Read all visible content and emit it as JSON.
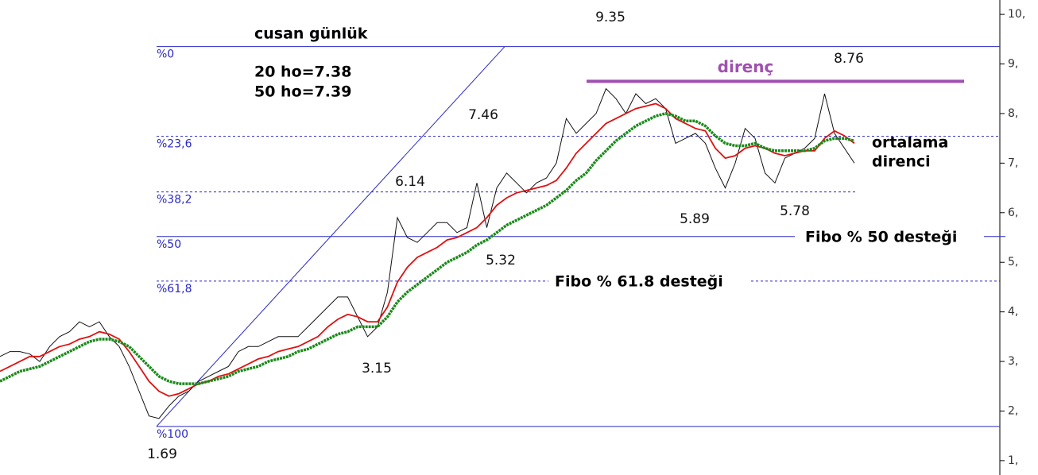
{
  "chart_data": {
    "type": "line",
    "title": "cusan günlük",
    "ma_labels": [
      "20 ho=7.38",
      "50 ho=7.39"
    ],
    "categories": [
      null,
      null,
      null,
      null,
      null,
      null,
      null,
      null,
      null,
      null,
      null,
      null,
      null,
      null,
      null,
      null,
      null,
      null,
      null,
      null,
      null,
      null,
      null,
      null,
      null,
      null,
      null,
      null,
      null,
      null,
      null,
      null,
      null,
      null,
      null,
      null,
      null,
      null,
      null,
      null,
      null,
      null,
      null,
      null,
      null,
      null,
      null,
      null,
      null,
      null,
      null,
      null,
      null,
      null,
      null,
      null,
      null,
      null,
      null,
      null,
      null,
      null,
      null,
      null,
      null,
      null,
      null,
      null,
      null,
      null,
      null,
      null,
      null,
      null,
      null,
      null,
      null,
      null,
      null,
      null,
      null,
      null,
      null,
      null,
      null,
      null,
      null
    ],
    "series": [
      {
        "color": "#111111",
        "values": [
          3.1,
          3.2,
          3.2,
          3.15,
          3.0,
          3.3,
          3.5,
          3.6,
          3.8,
          3.7,
          3.8,
          3.5,
          3.3,
          2.9,
          2.4,
          1.9,
          1.85,
          2.1,
          2.3,
          2.4,
          2.6,
          2.7,
          2.8,
          2.9,
          3.2,
          3.3,
          3.3,
          3.4,
          3.5,
          3.5,
          3.5,
          3.7,
          3.9,
          4.1,
          4.3,
          4.3,
          3.9,
          3.5,
          3.7,
          4.4,
          5.9,
          5.5,
          5.4,
          5.6,
          5.8,
          5.8,
          5.6,
          5.7,
          6.6,
          5.7,
          6.5,
          6.8,
          6.6,
          6.4,
          6.6,
          6.7,
          7.0,
          7.9,
          7.6,
          7.8,
          8.0,
          8.5,
          8.3,
          8.0,
          8.4,
          8.2,
          8.3,
          8.1,
          7.4,
          7.5,
          7.6,
          7.4,
          6.9,
          6.5,
          7.0,
          7.7,
          7.5,
          6.8,
          6.6,
          7.1,
          7.2,
          7.3,
          7.5,
          8.4,
          7.6,
          7.3,
          7.0
        ]
      },
      {
        "color": "#e01010",
        "values": [
          2.8,
          2.9,
          3.0,
          3.1,
          3.1,
          3.2,
          3.3,
          3.35,
          3.45,
          3.5,
          3.6,
          3.55,
          3.45,
          3.2,
          2.9,
          2.6,
          2.4,
          2.3,
          2.35,
          2.45,
          2.55,
          2.6,
          2.7,
          2.75,
          2.85,
          2.95,
          3.05,
          3.1,
          3.2,
          3.25,
          3.3,
          3.4,
          3.5,
          3.7,
          3.85,
          3.95,
          3.9,
          3.8,
          3.8,
          4.1,
          4.6,
          4.9,
          5.1,
          5.2,
          5.3,
          5.45,
          5.5,
          5.6,
          5.7,
          5.9,
          6.15,
          6.3,
          6.4,
          6.45,
          6.5,
          6.55,
          6.65,
          6.9,
          7.2,
          7.4,
          7.6,
          7.8,
          7.9,
          8.0,
          8.1,
          8.15,
          8.2,
          8.1,
          7.9,
          7.8,
          7.7,
          7.65,
          7.3,
          7.1,
          7.15,
          7.3,
          7.35,
          7.3,
          7.2,
          7.15,
          7.2,
          7.25,
          7.25,
          7.5,
          7.65,
          7.55,
          7.4
        ]
      },
      {
        "color": "#1a8a1a",
        "values": [
          2.6,
          2.7,
          2.8,
          2.85,
          2.9,
          3.0,
          3.1,
          3.2,
          3.3,
          3.4,
          3.45,
          3.45,
          3.4,
          3.3,
          3.1,
          2.9,
          2.7,
          2.6,
          2.55,
          2.55,
          2.55,
          2.6,
          2.65,
          2.7,
          2.8,
          2.85,
          2.9,
          3.0,
          3.05,
          3.1,
          3.2,
          3.25,
          3.35,
          3.45,
          3.55,
          3.6,
          3.7,
          3.7,
          3.7,
          3.9,
          4.2,
          4.4,
          4.55,
          4.7,
          4.85,
          5.0,
          5.1,
          5.2,
          5.35,
          5.45,
          5.6,
          5.75,
          5.85,
          5.95,
          6.05,
          6.15,
          6.3,
          6.45,
          6.65,
          6.8,
          7.05,
          7.25,
          7.45,
          7.6,
          7.75,
          7.85,
          7.95,
          8.0,
          7.95,
          7.85,
          7.85,
          7.75,
          7.55,
          7.4,
          7.35,
          7.35,
          7.4,
          7.3,
          7.25,
          7.25,
          7.25,
          7.25,
          7.3,
          7.45,
          7.5,
          7.5,
          7.45
        ]
      }
    ],
    "price_labels": [
      9.35,
      8.76,
      7.46,
      6.14,
      5.32,
      5.89,
      5.78,
      3.15,
      1.69
    ],
    "fibonacci": {
      "color": "#2828c8",
      "levels": [
        {
          "label": "%0",
          "value": 9.35
        },
        {
          "label": "%23,6",
          "value": 7.54
        },
        {
          "label": "%38,2",
          "value": 6.42
        },
        {
          "label": "%50",
          "value": 5.52
        },
        {
          "label": "%61,8",
          "value": 4.62
        },
        {
          "label": "%100",
          "value": 1.69
        }
      ]
    },
    "fibo_notes": [
      "Fibo % 50 desteği",
      "Fibo % 61.8 desteği"
    ],
    "resistance": {
      "label": "direnç",
      "value": 8.65,
      "color": "#a050b0"
    },
    "average_note": [
      "ortalama",
      "direnci"
    ],
    "ylim": [
      0.71,
      10.29
    ],
    "yticks": [
      {
        "value": 10,
        "label": "10,"
      },
      {
        "value": 9,
        "label": "9,"
      },
      {
        "value": 8,
        "label": "8,"
      },
      {
        "value": 7,
        "label": "7,"
      },
      {
        "value": 6,
        "label": "6,"
      },
      {
        "value": 5,
        "label": "5,"
      },
      {
        "value": 4,
        "label": "4,"
      },
      {
        "value": 3,
        "label": "3,"
      },
      {
        "value": 2,
        "label": "2,"
      },
      {
        "value": 1,
        "label": "1,"
      }
    ]
  }
}
